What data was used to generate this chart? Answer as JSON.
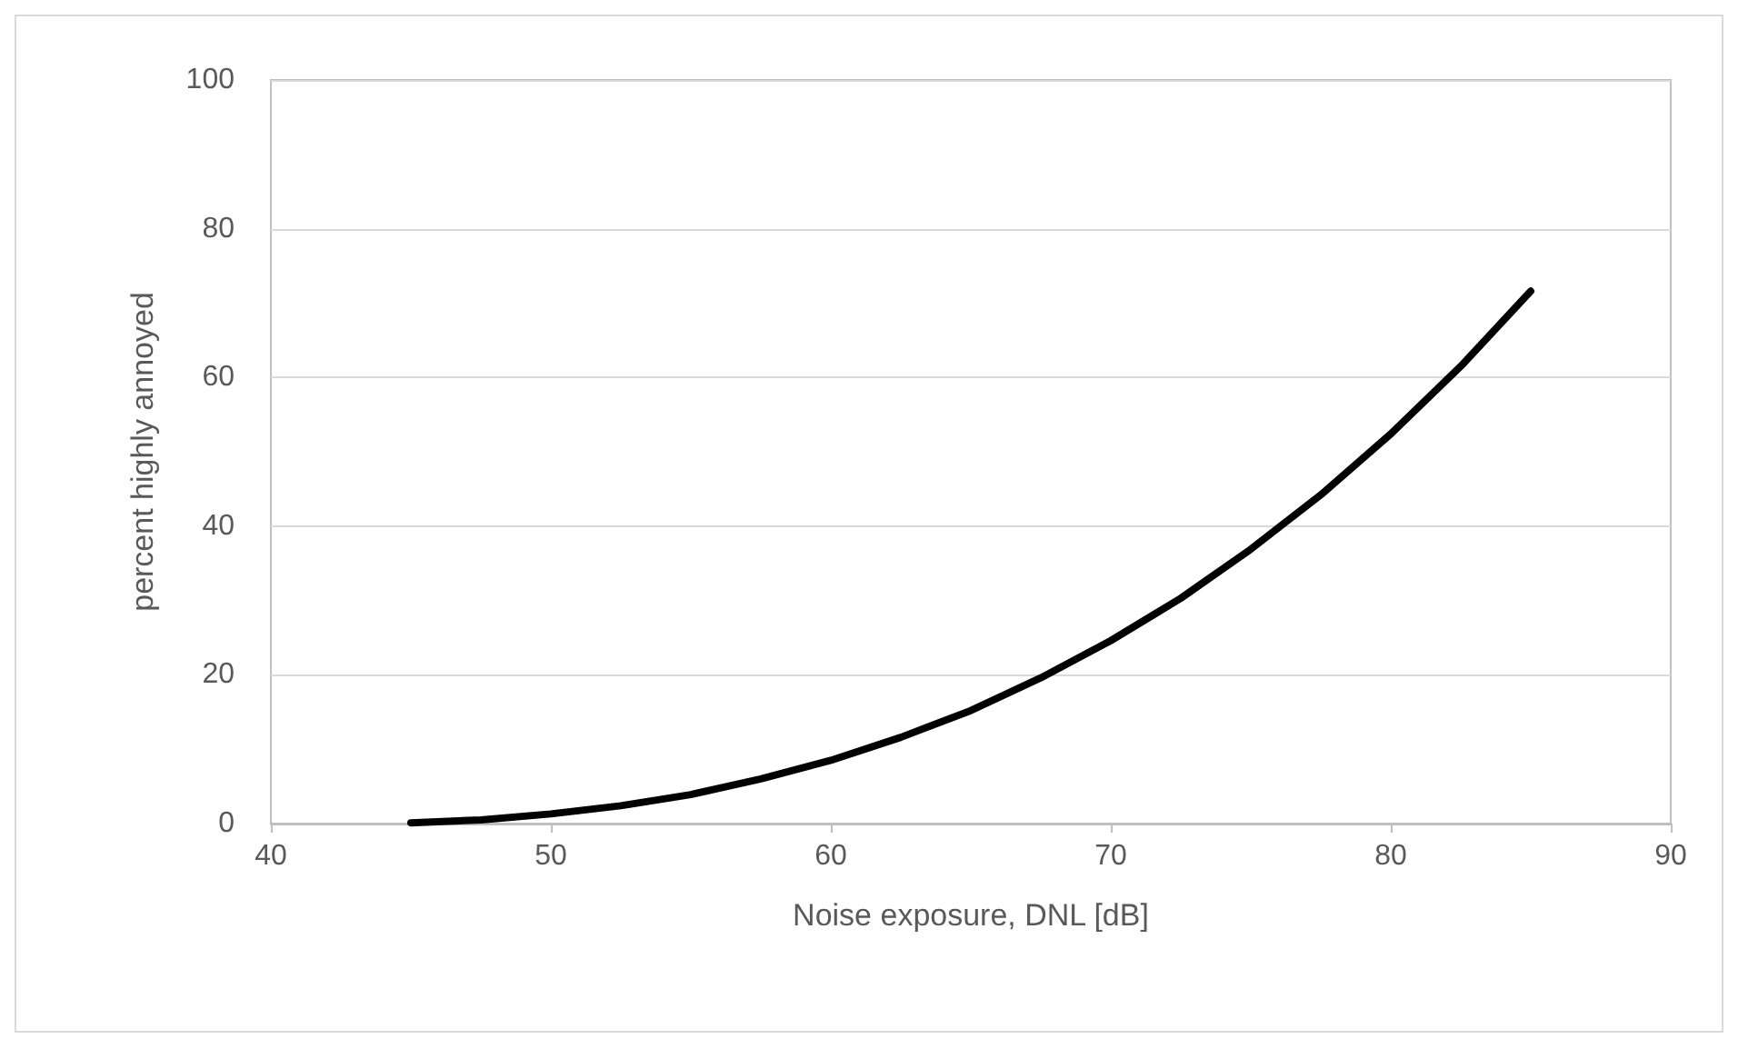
{
  "chart_data": {
    "type": "line",
    "xlabel": "Noise exposure, DNL [dB]",
    "ylabel": "percent highly annoyed",
    "x": [
      45,
      47.5,
      50,
      52.5,
      55,
      57.5,
      60,
      62.5,
      65,
      67.5,
      70,
      72.5,
      75,
      77.5,
      80,
      82.5,
      85
    ],
    "series": [
      {
        "color": "#000000",
        "values": [
          0.1,
          0.5,
          1.3,
          2.4,
          3.9,
          6.0,
          8.5,
          11.6,
          15.2,
          19.6,
          24.6,
          30.3,
          36.9,
          44.2,
          52.4,
          61.5,
          71.6
        ]
      }
    ],
    "xlim": [
      40,
      90
    ],
    "xticks": [
      40,
      50,
      60,
      70,
      80,
      90
    ],
    "ylim": [
      0,
      100
    ],
    "yticks": [
      0,
      20,
      40,
      60,
      80,
      100
    ],
    "grid": "y",
    "marker": "none",
    "line_style": "solid"
  }
}
